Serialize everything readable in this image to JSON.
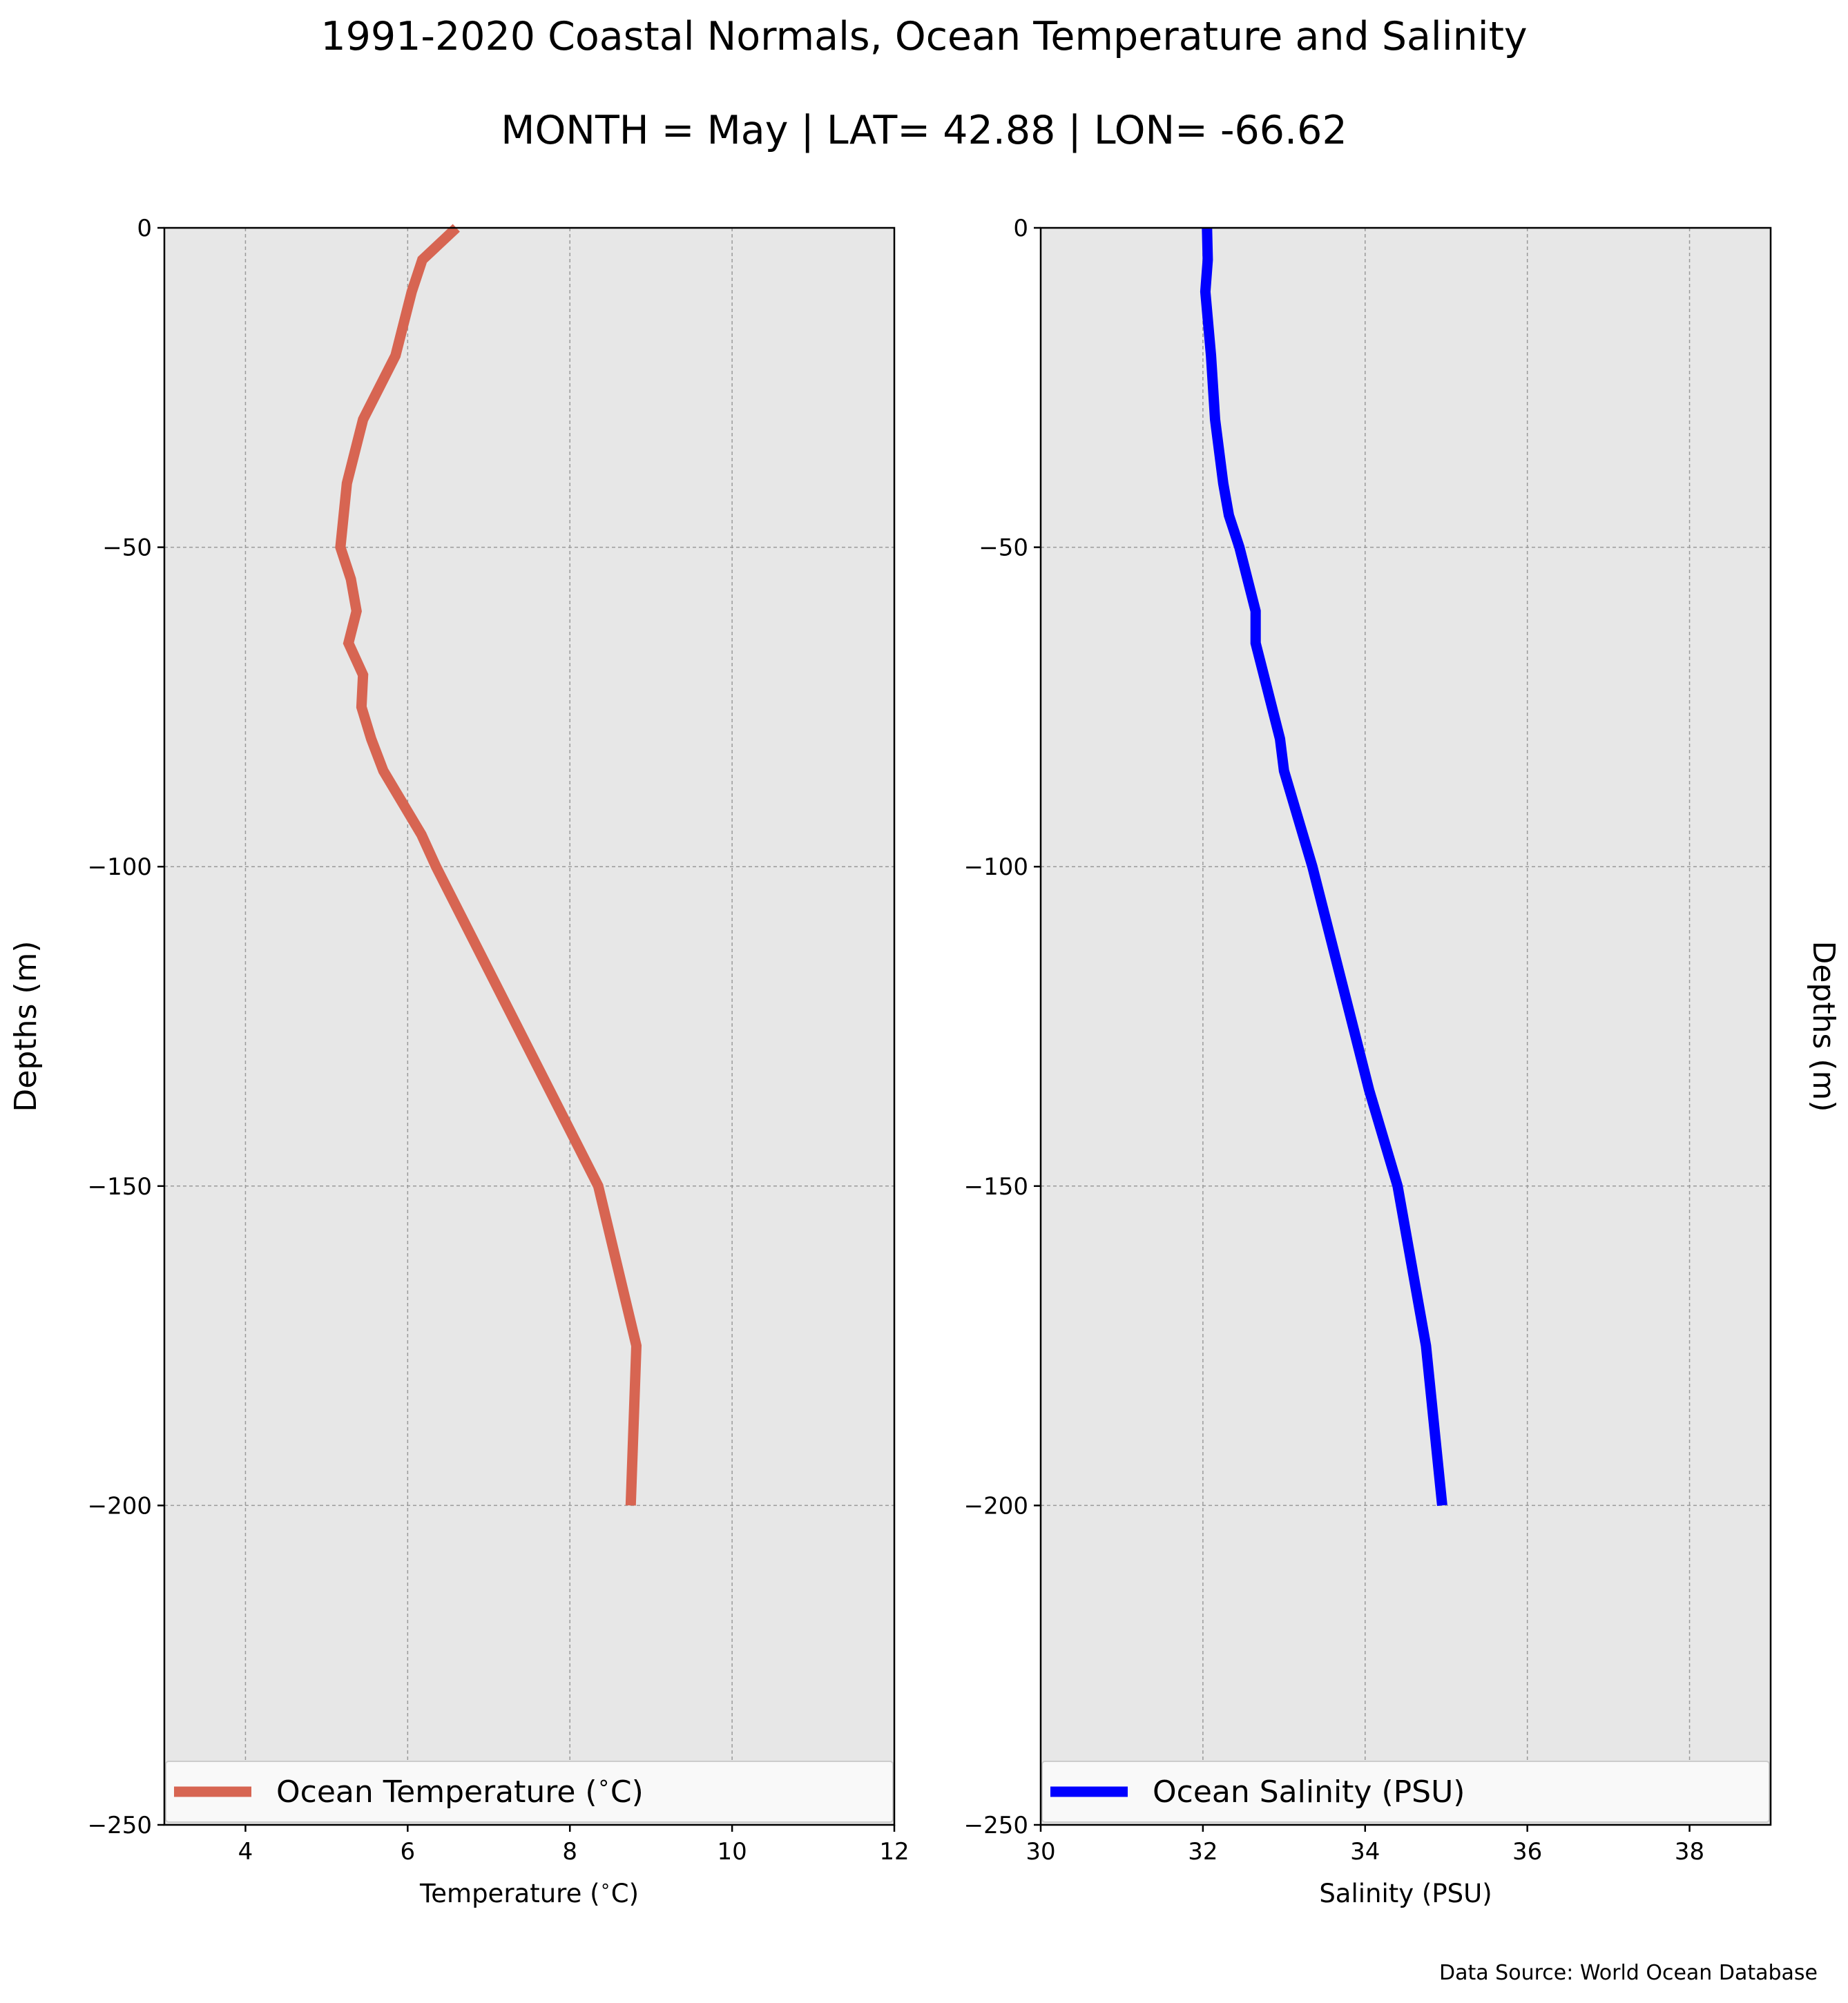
{
  "figure": {
    "title": "1991-2020 Coastal Normals, Ocean Temperature and Salinity",
    "subtitle": "MONTH = May | LAT= 42.88 | LON= -66.62",
    "source_note": "Data Source: World Ocean Database",
    "colors": {
      "panel_background": "#e7e7e7",
      "temperature_line": "#d76552",
      "salinity_line": "#0000ff",
      "grid": "#9a9a9a"
    }
  },
  "chart_data": [
    {
      "type": "line",
      "ylabel": "Depths (m)",
      "xlabel": "Temperature ($^\\circ$C)",
      "xlim": [
        3,
        12
      ],
      "ylim": [
        -250,
        0
      ],
      "xticks": [
        "4",
        "6",
        "8",
        "10",
        "12"
      ],
      "yticks": [
        "0",
        "−50",
        "−100",
        "−150",
        "−200",
        "−250"
      ],
      "grid": true,
      "legend_position": "bottom",
      "series": [
        {
          "name": "Ocean Temperature ($^\\circ$C)",
          "color": "#d76552",
          "points": [
            {
              "x": 6.6,
              "y": 0
            },
            {
              "x": 6.18,
              "y": -5
            },
            {
              "x": 6.05,
              "y": -10
            },
            {
              "x": 5.85,
              "y": -20
            },
            {
              "x": 5.65,
              "y": -25
            },
            {
              "x": 5.45,
              "y": -30
            },
            {
              "x": 5.35,
              "y": -35
            },
            {
              "x": 5.25,
              "y": -40
            },
            {
              "x": 5.17,
              "y": -50
            },
            {
              "x": 5.3,
              "y": -55
            },
            {
              "x": 5.37,
              "y": -60
            },
            {
              "x": 5.27,
              "y": -65
            },
            {
              "x": 5.45,
              "y": -70
            },
            {
              "x": 5.43,
              "y": -75
            },
            {
              "x": 5.55,
              "y": -80
            },
            {
              "x": 5.7,
              "y": -85
            },
            {
              "x": 6.17,
              "y": -95
            },
            {
              "x": 6.35,
              "y": -100
            },
            {
              "x": 7.35,
              "y": -125
            },
            {
              "x": 7.95,
              "y": -140
            },
            {
              "x": 8.35,
              "y": -150
            },
            {
              "x": 8.82,
              "y": -175
            },
            {
              "x": 8.75,
              "y": -200
            }
          ]
        }
      ]
    },
    {
      "type": "line",
      "ylabel": "Depths (m)",
      "xlabel": "Salinity (PSU)",
      "xlim": [
        30,
        39
      ],
      "ylim": [
        -250,
        0
      ],
      "xticks": [
        "30",
        "32",
        "34",
        "36",
        "38"
      ],
      "yticks": [
        "0",
        "−50",
        "−100",
        "−150",
        "−200",
        "−250"
      ],
      "grid": true,
      "legend_position": "bottom",
      "series": [
        {
          "name": "Ocean Salinity (PSU)",
          "color": "#0000ff",
          "points": [
            {
              "x": 32.05,
              "y": 0
            },
            {
              "x": 32.06,
              "y": -5
            },
            {
              "x": 32.03,
              "y": -10
            },
            {
              "x": 32.1,
              "y": -20
            },
            {
              "x": 32.15,
              "y": -30
            },
            {
              "x": 32.25,
              "y": -40
            },
            {
              "x": 32.32,
              "y": -45
            },
            {
              "x": 32.45,
              "y": -50
            },
            {
              "x": 32.65,
              "y": -60
            },
            {
              "x": 32.65,
              "y": -65
            },
            {
              "x": 32.75,
              "y": -70
            },
            {
              "x": 32.95,
              "y": -80
            },
            {
              "x": 33.0,
              "y": -85
            },
            {
              "x": 33.35,
              "y": -100
            },
            {
              "x": 33.85,
              "y": -125
            },
            {
              "x": 34.05,
              "y": -135
            },
            {
              "x": 34.4,
              "y": -150
            },
            {
              "x": 34.75,
              "y": -175
            },
            {
              "x": 34.95,
              "y": -200
            }
          ]
        }
      ]
    }
  ]
}
